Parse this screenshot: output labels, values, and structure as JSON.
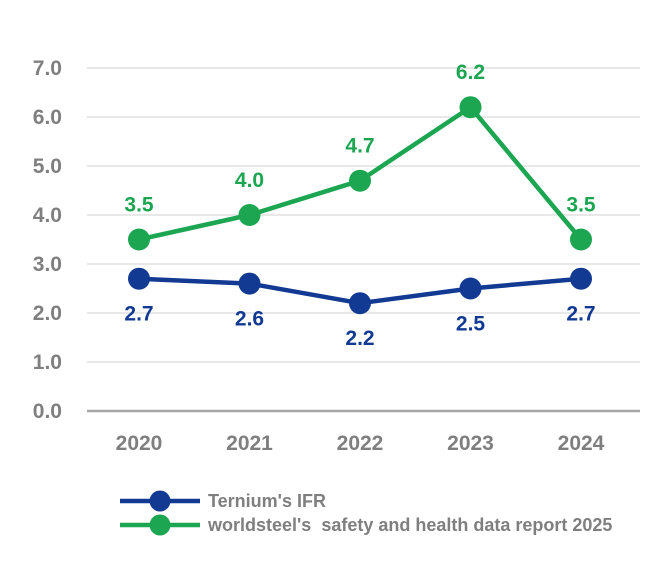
{
  "chart_data": {
    "type": "line",
    "categories": [
      "2020",
      "2021",
      "2022",
      "2023",
      "2024"
    ],
    "series": [
      {
        "name": "Ternium's IFR",
        "color": "#123A93",
        "values": [
          2.7,
          2.6,
          2.2,
          2.5,
          2.7
        ],
        "data_labels": [
          "2.7",
          "2.6",
          "2.2",
          "2.5",
          "2.7"
        ],
        "label_position": "below"
      },
      {
        "name": "worldsteel's  safety and health data report 2025",
        "color": "#1CA651",
        "values": [
          3.5,
          4.0,
          4.7,
          6.2,
          3.5
        ],
        "data_labels": [
          "3.5",
          "4.0",
          "4.7",
          "6.2",
          "3.5"
        ],
        "label_position": "above"
      }
    ],
    "ylim": [
      0,
      7
    ],
    "ytick_step": 1.0,
    "ytick_labels": [
      "0.0",
      "1.0",
      "2.0",
      "3.0",
      "4.0",
      "5.0",
      "6.0",
      "7.0"
    ],
    "grid": true,
    "legend_position": "bottom-left",
    "colors": {
      "grid": "#D9D9D9",
      "axis_line": "#A6A6A6",
      "tick_label": "#7F7F7F",
      "legend_text": "#7F7F7F",
      "background": "#FFFFFF"
    }
  }
}
